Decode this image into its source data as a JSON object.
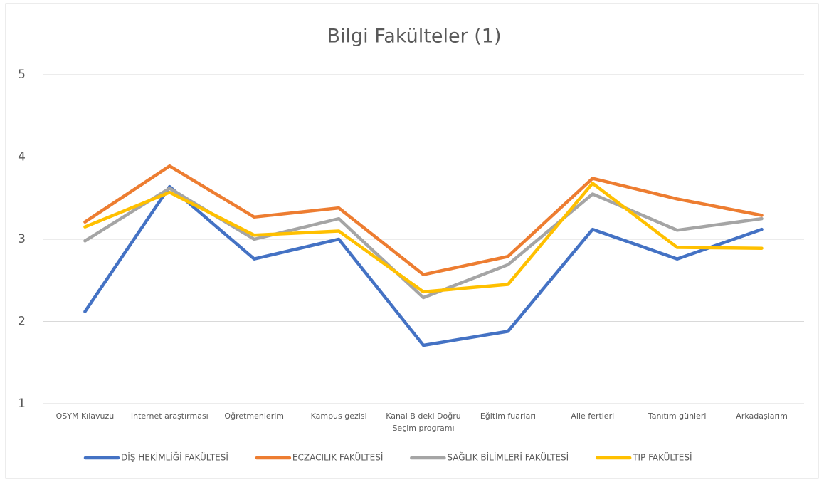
{
  "chart_data": {
    "type": "line",
    "title": "Bilgi Fakülteler (1)",
    "categories": [
      "ÖSYM Kılavuzu",
      "İnternet araştırması",
      "Öğretmenlerim",
      "Kampus gezisi",
      "Kanal B deki Doğru Seçim programı",
      "Eğitim fuarları",
      "Aile fertleri",
      "Tanıtım günleri",
      "Arkadaşlarım"
    ],
    "series": [
      {
        "name": "DİŞ HEKİMLİĞİ FAKÜLTESİ",
        "color": "#4472c4",
        "values": [
          2.12,
          3.64,
          2.76,
          3.0,
          1.71,
          1.88,
          3.12,
          2.76,
          3.12
        ]
      },
      {
        "name": "ECZACILIK FAKÜLTESİ",
        "color": "#ed7d31",
        "values": [
          3.21,
          3.89,
          3.27,
          3.38,
          2.57,
          2.79,
          3.74,
          3.49,
          3.29
        ]
      },
      {
        "name": "SAĞLIK BİLİMLERİ FAKÜLTESİ",
        "color": "#a5a5a5",
        "values": [
          2.98,
          3.62,
          3.0,
          3.25,
          2.29,
          2.69,
          3.55,
          3.11,
          3.25
        ]
      },
      {
        "name": "TIP FAKÜLTESİ",
        "color": "#ffc000",
        "values": [
          3.15,
          3.57,
          3.05,
          3.1,
          2.36,
          2.45,
          3.68,
          2.9,
          2.89
        ]
      }
    ],
    "ylim": [
      1,
      5
    ],
    "yticks": [
      1,
      2,
      3,
      4,
      5
    ],
    "grid": true,
    "legend": "bottom"
  }
}
